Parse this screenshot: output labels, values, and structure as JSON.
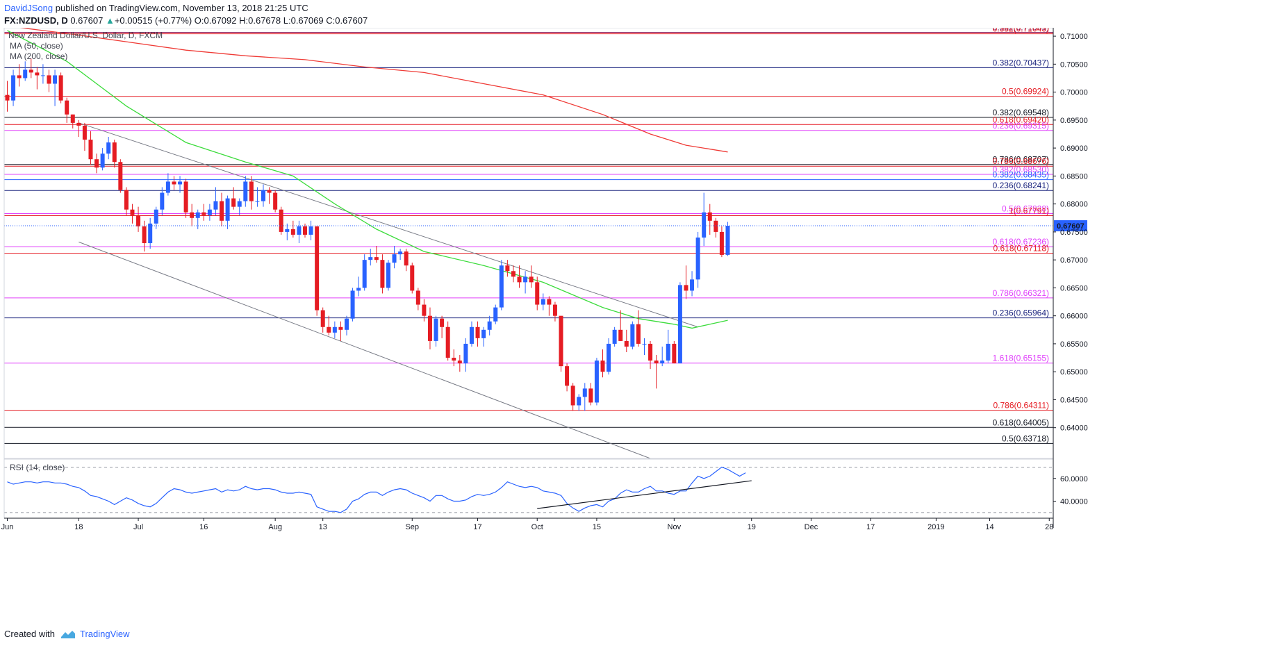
{
  "header": {
    "author": "DavidJSong",
    "published": "published on TradingView.com, November 13, 2018 21:25 UTC"
  },
  "quote": {
    "symbol": "FX:NZDUSD, D",
    "last": "0.67607",
    "change_arrow": "▲",
    "change": "+0.00515 (+0.77%)",
    "open": "O:0.67092",
    "high": "H:0.67678",
    "low": "L:0.67069",
    "close": "C:0.67607"
  },
  "footer": {
    "created_with": "Created with",
    "brand": "TradingView",
    "logo_icon": "tradingview-logo-icon"
  },
  "colors": {
    "up": "#2962ff",
    "down": "#e51c23",
    "ma50": "#3cdc3c",
    "ma200": "#ef3b36",
    "rsi": "#2962ff"
  },
  "chart_data": {
    "type": "candlestick",
    "title": "New Zealand Dollar/U.S. Dollar, D, FXCM",
    "legend": [
      "MA (50, close)",
      "MA (200, close)"
    ],
    "ylim": [
      0.6345,
      0.7115
    ],
    "y_ticks": [
      "0.71000",
      "0.70500",
      "0.70000",
      "0.69500",
      "0.69000",
      "0.68500",
      "0.68000",
      "0.67500",
      "0.67000",
      "0.66500",
      "0.66000",
      "0.65500",
      "0.65000",
      "0.64500",
      "0.64000"
    ],
    "x_ticks": [
      {
        "label": "Jun",
        "i": 0
      },
      {
        "label": "18",
        "i": 12
      },
      {
        "label": "Jul",
        "i": 22
      },
      {
        "label": "16",
        "i": 33
      },
      {
        "label": "Aug",
        "i": 45
      },
      {
        "label": "13",
        "i": 53
      },
      {
        "label": "Sep",
        "i": 68
      },
      {
        "label": "17",
        "i": 79
      },
      {
        "label": "Oct",
        "i": 89
      },
      {
        "label": "15",
        "i": 99
      },
      {
        "label": "Nov",
        "i": 112
      },
      {
        "label": "19",
        "i": 125
      },
      {
        "label": "Dec",
        "i": 135
      },
      {
        "label": "17",
        "i": 145
      },
      {
        "label": "2019",
        "i": 156
      },
      {
        "label": "14",
        "i": 165
      },
      {
        "label": "28",
        "i": 175
      }
    ],
    "last_price": "0.67607",
    "candles": [
      [
        0.6995,
        0.702,
        0.6965,
        0.6985
      ],
      [
        0.6985,
        0.704,
        0.6975,
        0.703
      ],
      [
        0.703,
        0.705,
        0.701,
        0.7025
      ],
      [
        0.7025,
        0.7055,
        0.702,
        0.704
      ],
      [
        0.704,
        0.706,
        0.7025,
        0.7035
      ],
      [
        0.7035,
        0.7045,
        0.7005,
        0.703
      ],
      [
        0.703,
        0.705,
        0.7015,
        0.703
      ],
      [
        0.703,
        0.704,
        0.7,
        0.7015
      ],
      [
        0.7015,
        0.704,
        0.6975,
        0.703
      ],
      [
        0.703,
        0.7035,
        0.698,
        0.6985
      ],
      [
        0.6985,
        0.699,
        0.6945,
        0.696
      ],
      [
        0.696,
        0.696,
        0.6935,
        0.6945
      ],
      [
        0.6945,
        0.695,
        0.692,
        0.694
      ],
      [
        0.694,
        0.6945,
        0.6895,
        0.6915
      ],
      [
        0.6915,
        0.693,
        0.687,
        0.688
      ],
      [
        0.688,
        0.689,
        0.6855,
        0.6865
      ],
      [
        0.6865,
        0.69,
        0.686,
        0.689
      ],
      [
        0.689,
        0.692,
        0.688,
        0.691
      ],
      [
        0.691,
        0.6915,
        0.6865,
        0.6875
      ],
      [
        0.6875,
        0.688,
        0.682,
        0.6825
      ],
      [
        0.6825,
        0.683,
        0.678,
        0.679
      ],
      [
        0.679,
        0.68,
        0.6765,
        0.678
      ],
      [
        0.678,
        0.6795,
        0.675,
        0.676
      ],
      [
        0.676,
        0.677,
        0.6715,
        0.673
      ],
      [
        0.673,
        0.6775,
        0.672,
        0.6765
      ],
      [
        0.6765,
        0.6795,
        0.6755,
        0.679
      ],
      [
        0.679,
        0.683,
        0.678,
        0.682
      ],
      [
        0.682,
        0.6855,
        0.6815,
        0.684
      ],
      [
        0.684,
        0.685,
        0.6825,
        0.6835
      ],
      [
        0.6835,
        0.685,
        0.682,
        0.684
      ],
      [
        0.684,
        0.6845,
        0.6775,
        0.6785
      ],
      [
        0.6785,
        0.68,
        0.676,
        0.6775
      ],
      [
        0.6775,
        0.679,
        0.6755,
        0.6785
      ],
      [
        0.6785,
        0.68,
        0.677,
        0.678
      ],
      [
        0.678,
        0.68,
        0.677,
        0.679
      ],
      [
        0.679,
        0.683,
        0.678,
        0.6805
      ],
      [
        0.6805,
        0.682,
        0.676,
        0.677
      ],
      [
        0.677,
        0.6815,
        0.6755,
        0.681
      ],
      [
        0.681,
        0.683,
        0.679,
        0.6795
      ],
      [
        0.6795,
        0.681,
        0.678,
        0.6805
      ],
      [
        0.6805,
        0.685,
        0.6795,
        0.684
      ],
      [
        0.684,
        0.685,
        0.679,
        0.6805
      ],
      [
        0.6805,
        0.683,
        0.6795,
        0.6805
      ],
      [
        0.6805,
        0.6835,
        0.6795,
        0.6825
      ],
      [
        0.6825,
        0.683,
        0.68,
        0.682
      ],
      [
        0.682,
        0.6825,
        0.6785,
        0.679
      ],
      [
        0.679,
        0.6795,
        0.6745,
        0.675
      ],
      [
        0.675,
        0.6765,
        0.6735,
        0.6755
      ],
      [
        0.6755,
        0.677,
        0.674,
        0.6745
      ],
      [
        0.6745,
        0.677,
        0.673,
        0.676
      ],
      [
        0.676,
        0.6765,
        0.674,
        0.6745
      ],
      [
        0.6745,
        0.677,
        0.6735,
        0.676
      ],
      [
        0.676,
        0.676,
        0.66,
        0.661
      ],
      [
        0.661,
        0.6615,
        0.657,
        0.658
      ],
      [
        0.658,
        0.66,
        0.6565,
        0.657
      ],
      [
        0.657,
        0.659,
        0.656,
        0.658
      ],
      [
        0.658,
        0.659,
        0.6555,
        0.6575
      ],
      [
        0.6575,
        0.66,
        0.6565,
        0.6595
      ],
      [
        0.6595,
        0.665,
        0.659,
        0.6645
      ],
      [
        0.6645,
        0.667,
        0.6635,
        0.665
      ],
      [
        0.665,
        0.671,
        0.6645,
        0.67
      ],
      [
        0.67,
        0.672,
        0.669,
        0.6705
      ],
      [
        0.6705,
        0.6725,
        0.6695,
        0.67
      ],
      [
        0.67,
        0.671,
        0.664,
        0.665
      ],
      [
        0.665,
        0.67,
        0.6645,
        0.6695
      ],
      [
        0.6695,
        0.6725,
        0.6685,
        0.671
      ],
      [
        0.671,
        0.672,
        0.67,
        0.6715
      ],
      [
        0.6715,
        0.672,
        0.668,
        0.669
      ],
      [
        0.669,
        0.6695,
        0.664,
        0.6645
      ],
      [
        0.6645,
        0.665,
        0.661,
        0.662
      ],
      [
        0.662,
        0.663,
        0.659,
        0.66
      ],
      [
        0.66,
        0.6615,
        0.654,
        0.6555
      ],
      [
        0.6555,
        0.66,
        0.6545,
        0.6595
      ],
      [
        0.6595,
        0.66,
        0.656,
        0.658
      ],
      [
        0.658,
        0.659,
        0.652,
        0.6525
      ],
      [
        0.6525,
        0.654,
        0.651,
        0.652
      ],
      [
        0.652,
        0.653,
        0.65,
        0.6515
      ],
      [
        0.6515,
        0.656,
        0.65,
        0.655
      ],
      [
        0.655,
        0.659,
        0.6545,
        0.658
      ],
      [
        0.658,
        0.659,
        0.6545,
        0.656
      ],
      [
        0.656,
        0.658,
        0.6545,
        0.6575
      ],
      [
        0.6575,
        0.66,
        0.6565,
        0.659
      ],
      [
        0.659,
        0.662,
        0.6585,
        0.6615
      ],
      [
        0.6615,
        0.67,
        0.661,
        0.669
      ],
      [
        0.669,
        0.67,
        0.667,
        0.668
      ],
      [
        0.668,
        0.669,
        0.666,
        0.667
      ],
      [
        0.667,
        0.669,
        0.665,
        0.666
      ],
      [
        0.666,
        0.668,
        0.664,
        0.667
      ],
      [
        0.667,
        0.669,
        0.665,
        0.666
      ],
      [
        0.666,
        0.667,
        0.661,
        0.662
      ],
      [
        0.662,
        0.664,
        0.661,
        0.663
      ],
      [
        0.663,
        0.6635,
        0.66,
        0.662
      ],
      [
        0.662,
        0.6625,
        0.659,
        0.66
      ],
      [
        0.66,
        0.66,
        0.65,
        0.651
      ],
      [
        0.651,
        0.6515,
        0.6465,
        0.6475
      ],
      [
        0.6475,
        0.648,
        0.643,
        0.644
      ],
      [
        0.644,
        0.646,
        0.643,
        0.6455
      ],
      [
        0.6455,
        0.648,
        0.643,
        0.647
      ],
      [
        0.647,
        0.648,
        0.644,
        0.6445
      ],
      [
        0.6445,
        0.6525,
        0.644,
        0.652
      ],
      [
        0.652,
        0.654,
        0.649,
        0.65
      ],
      [
        0.65,
        0.656,
        0.6495,
        0.655
      ],
      [
        0.655,
        0.658,
        0.6545,
        0.6575
      ],
      [
        0.6575,
        0.661,
        0.6555,
        0.6555
      ],
      [
        0.6555,
        0.6575,
        0.6535,
        0.6545
      ],
      [
        0.6545,
        0.659,
        0.654,
        0.6585
      ],
      [
        0.6585,
        0.661,
        0.6545,
        0.655
      ],
      [
        0.655,
        0.656,
        0.653,
        0.655
      ],
      [
        0.655,
        0.6555,
        0.6505,
        0.652
      ],
      [
        0.652,
        0.653,
        0.647,
        0.6515
      ],
      [
        0.6515,
        0.6545,
        0.651,
        0.652
      ],
      [
        0.652,
        0.6575,
        0.6515,
        0.655
      ],
      [
        0.655,
        0.6555,
        0.6515,
        0.6515
      ],
      [
        0.6515,
        0.666,
        0.6515,
        0.6655
      ],
      [
        0.6655,
        0.669,
        0.663,
        0.6645
      ],
      [
        0.6645,
        0.668,
        0.6635,
        0.6665
      ],
      [
        0.6665,
        0.675,
        0.665,
        0.674
      ],
      [
        0.674,
        0.682,
        0.6725,
        0.6785
      ],
      [
        0.6785,
        0.68,
        0.6745,
        0.677
      ],
      [
        0.677,
        0.6775,
        0.674,
        0.675
      ],
      [
        0.675,
        0.676,
        0.6705,
        0.6709
      ],
      [
        0.6709,
        0.6768,
        0.6707,
        0.6761
      ]
    ],
    "ma50": [
      [
        0,
        0.711
      ],
      [
        10,
        0.7055
      ],
      [
        20,
        0.6975
      ],
      [
        30,
        0.691
      ],
      [
        40,
        0.6875
      ],
      [
        48,
        0.685
      ],
      [
        55,
        0.68
      ],
      [
        62,
        0.6755
      ],
      [
        70,
        0.6715
      ],
      [
        80,
        0.669
      ],
      [
        90,
        0.666
      ],
      [
        100,
        0.6615
      ],
      [
        106,
        0.6595
      ],
      [
        112,
        0.6585
      ],
      [
        115,
        0.6578
      ],
      [
        118,
        0.6585
      ],
      [
        121,
        0.6592
      ]
    ],
    "ma200": [
      [
        0,
        0.7118
      ],
      [
        10,
        0.7105
      ],
      [
        20,
        0.709
      ],
      [
        30,
        0.7075
      ],
      [
        40,
        0.7065
      ],
      [
        50,
        0.7058
      ],
      [
        60,
        0.7045
      ],
      [
        70,
        0.7035
      ],
      [
        80,
        0.7015
      ],
      [
        90,
        0.6995
      ],
      [
        100,
        0.696
      ],
      [
        108,
        0.6925
      ],
      [
        114,
        0.6905
      ],
      [
        121,
        0.6893
      ]
    ],
    "channel_lines": [
      {
        "from": [
          12,
          0.6945
        ],
        "to": [
          116,
          0.658
        ]
      },
      {
        "from": [
          12,
          0.6732
        ],
        "to": [
          108,
          0.6345
        ]
      }
    ],
    "levels": [
      {
        "label": "0.382(0.71069)",
        "value": 0.71069,
        "color": "#880e4f",
        "extend": "full"
      },
      {
        "label": "0.382(0.71043)",
        "value": 0.71043,
        "color": "#e51c23",
        "extend": "full"
      },
      {
        "label": "0.382(0.70437)",
        "value": 0.70437,
        "color": "#1a237e",
        "extend": "full"
      },
      {
        "label": "0.5(0.69924)",
        "value": 0.69924,
        "color": "#e51c23",
        "extend": "full"
      },
      {
        "label": "0.382(0.69548)",
        "value": 0.69548,
        "color": "#131722",
        "extend": "full"
      },
      {
        "label": "0.618(0.69420)",
        "value": 0.6942,
        "color": "#e51c23",
        "extend": "full"
      },
      {
        "label": "0.236(0.69315)",
        "value": 0.69315,
        "color": "#e040fb",
        "extend": "full"
      },
      {
        "label": "0.786(0.68707)",
        "value": 0.68707,
        "color": "#131722",
        "extend": "full"
      },
      {
        "label": "0.786(0.68676)",
        "value": 0.68676,
        "color": "#e51c23",
        "extend": "full"
      },
      {
        "label": "0.382(0.68530)",
        "value": 0.6853,
        "color": "#e040fb",
        "extend": "full"
      },
      {
        "label": "0.382(0.68435)",
        "value": 0.68435,
        "color": "#2962ff",
        "extend": "full"
      },
      {
        "label": "0.236(0.68241)",
        "value": 0.68241,
        "color": "#1a237e",
        "extend": "full"
      },
      {
        "label": "0.5(0.67828)",
        "value": 0.67828,
        "color": "#e040fb",
        "extend": "full"
      },
      {
        "label": "1(0.67791)",
        "value": 0.67791,
        "color": "#e51c23",
        "extend": "full"
      },
      {
        "label": "0.618(0.67236)",
        "value": 0.67236,
        "color": "#e040fb",
        "extend": "full"
      },
      {
        "label": "0.618(0.67118)",
        "value": 0.67118,
        "color": "#e51c23",
        "extend": "full"
      },
      {
        "label": "0.786(0.66321)",
        "value": 0.66321,
        "color": "#e040fb",
        "extend": "full"
      },
      {
        "label": "0.236(0.65964)",
        "value": 0.65964,
        "color": "#1a237e",
        "extend": "full"
      },
      {
        "label": "1.618(0.65155)",
        "value": 0.65155,
        "color": "#e040fb",
        "extend": "full"
      },
      {
        "label": "0.786(0.64311)",
        "value": 0.64311,
        "color": "#e51c23",
        "extend": "full"
      },
      {
        "label": "0.618(0.64005)",
        "value": 0.64005,
        "color": "#131722",
        "extend": "full"
      },
      {
        "label": "0.5(0.63718)",
        "value": 0.63718,
        "color": "#131722",
        "extend": "full"
      }
    ],
    "rsi": {
      "title": "RSI (14, close)",
      "ylim": [
        25,
        77
      ],
      "y_ticks": [
        "60.0000",
        "40.0000"
      ],
      "bands": [
        70,
        30
      ],
      "values": [
        57,
        55,
        56,
        57,
        57,
        56,
        57,
        57,
        56,
        56,
        55,
        53,
        52,
        49,
        45,
        44,
        42,
        40,
        37,
        40,
        43,
        41,
        38,
        36,
        35,
        38,
        43,
        48,
        51,
        50,
        48,
        47,
        48,
        49,
        50,
        51,
        48,
        50,
        49,
        50,
        53,
        51,
        50,
        51,
        51,
        50,
        48,
        47,
        47,
        48,
        47,
        46,
        35,
        33,
        31,
        31,
        30,
        33,
        40,
        42,
        46,
        48,
        48,
        45,
        48,
        50,
        51,
        50,
        47,
        45,
        43,
        40,
        45,
        45,
        42,
        40,
        40,
        41,
        44,
        46,
        45,
        46,
        48,
        52,
        57,
        55,
        53,
        52,
        53,
        52,
        49,
        48,
        47,
        45,
        38,
        34,
        31,
        34,
        36,
        37,
        35,
        40,
        42,
        47,
        50,
        48,
        48,
        51,
        53,
        49,
        49,
        47,
        46,
        49,
        49,
        56,
        62,
        60,
        62,
        66,
        70,
        68,
        65,
        62,
        65
      ]
    },
    "rsi_trendline": {
      "from": [
        89,
        33.5
      ],
      "to": [
        125,
        58
      ]
    }
  }
}
